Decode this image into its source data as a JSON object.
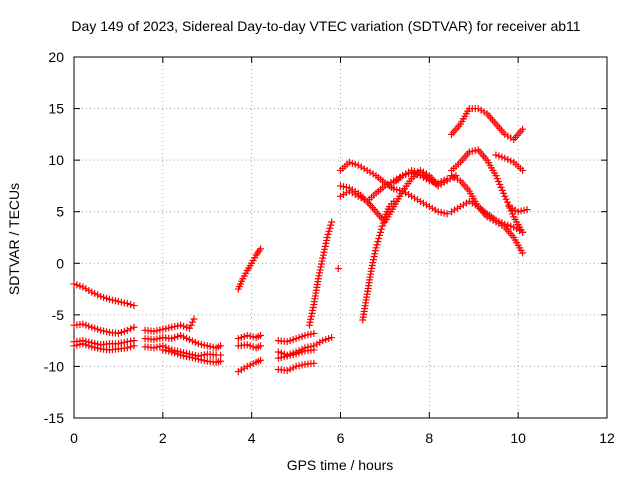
{
  "chart_data": {
    "type": "scatter",
    "title": "Day 149 of 2023, Sidereal Day-to-day VTEC variation (SDTVAR) for receiver ab11",
    "xlabel": "GPS time / hours",
    "ylabel": "SDTVAR / TECUs",
    "xlim": [
      0,
      12
    ],
    "ylim": [
      -15,
      20
    ],
    "xticks": [
      "0",
      "2",
      "4",
      "6",
      "8",
      "10",
      "12"
    ],
    "yticks": [
      "-15",
      "-10",
      "-5",
      "0",
      "5",
      "10",
      "15",
      "20"
    ],
    "grid": true,
    "marker": "plus",
    "color": "#ff0000",
    "series": [
      {
        "x": [
          0.0,
          0.2,
          0.4,
          0.6,
          0.8,
          1.0,
          1.2,
          1.35
        ],
        "y": [
          -2.0,
          -2.3,
          -2.8,
          -3.2,
          -3.5,
          -3.7,
          -3.9,
          -4.1
        ]
      },
      {
        "x": [
          0.0,
          0.2,
          0.4,
          0.6,
          0.8,
          1.0,
          1.2,
          1.35
        ],
        "y": [
          -6.0,
          -5.9,
          -6.2,
          -6.5,
          -6.7,
          -6.8,
          -6.5,
          -6.2
        ]
      },
      {
        "x": [
          0.0,
          0.2,
          0.4,
          0.6,
          0.8,
          1.0,
          1.2,
          1.35
        ],
        "y": [
          -7.6,
          -7.5,
          -7.7,
          -7.9,
          -7.8,
          -7.8,
          -7.6,
          -7.5
        ]
      },
      {
        "x": [
          0.0,
          0.2,
          0.4,
          0.6,
          0.8,
          1.0,
          1.2,
          1.35
        ],
        "y": [
          -8.0,
          -7.8,
          -8.1,
          -8.3,
          -8.4,
          -8.3,
          -8.2,
          -8.0
        ]
      },
      {
        "x": [
          1.6,
          1.8,
          2.0,
          2.2,
          2.4,
          2.6,
          2.7
        ],
        "y": [
          -6.5,
          -6.6,
          -6.4,
          -6.2,
          -6.0,
          -6.3,
          -5.4
        ]
      },
      {
        "x": [
          1.6,
          1.8,
          2.0,
          2.2,
          2.4,
          2.6,
          2.8,
          3.0,
          3.2,
          3.3
        ],
        "y": [
          -7.3,
          -7.4,
          -7.2,
          -7.3,
          -7.0,
          -7.4,
          -7.8,
          -8.0,
          -8.2,
          -8.0
        ]
      },
      {
        "x": [
          1.6,
          1.8,
          2.0,
          2.2,
          2.4,
          2.6,
          2.8,
          3.0,
          3.2,
          3.3
        ],
        "y": [
          -8.1,
          -8.2,
          -8.0,
          -8.4,
          -8.6,
          -8.8,
          -9.0,
          -8.8,
          -8.9,
          -8.9
        ]
      },
      {
        "x": [
          2.0,
          2.2,
          2.4,
          2.6,
          2.8,
          3.0,
          3.2,
          3.3
        ],
        "y": [
          -8.4,
          -8.6,
          -8.9,
          -9.1,
          -9.3,
          -9.5,
          -9.6,
          -9.5
        ]
      },
      {
        "x": [
          3.7,
          3.8,
          3.9,
          4.0,
          4.1,
          4.2
        ],
        "y": [
          -2.5,
          -1.5,
          -0.7,
          0.0,
          0.8,
          1.4
        ]
      },
      {
        "x": [
          3.7,
          3.9,
          4.1,
          4.2
        ],
        "y": [
          -7.3,
          -7.0,
          -7.2,
          -7.0
        ]
      },
      {
        "x": [
          3.7,
          3.9,
          4.1,
          4.2
        ],
        "y": [
          -8.0,
          -7.9,
          -8.2,
          -8.0
        ]
      },
      {
        "x": [
          3.7,
          3.9,
          4.1,
          4.2
        ],
        "y": [
          -10.5,
          -10.0,
          -9.6,
          -9.4
        ]
      },
      {
        "x": [
          4.6,
          4.8,
          5.0,
          5.2,
          5.4
        ],
        "y": [
          -7.5,
          -7.6,
          -7.3,
          -7.0,
          -6.8
        ]
      },
      {
        "x": [
          4.6,
          4.8,
          5.0,
          5.2,
          5.4,
          5.6,
          5.8
        ],
        "y": [
          -8.6,
          -8.9,
          -8.6,
          -8.2,
          -8.0,
          -7.5,
          -7.2
        ]
      },
      {
        "x": [
          4.6,
          4.8,
          5.0,
          5.2,
          5.4
        ],
        "y": [
          -9.2,
          -9.0,
          -8.8,
          -8.5,
          -8.4
        ]
      },
      {
        "x": [
          4.6,
          4.8,
          5.0,
          5.2,
          5.4
        ],
        "y": [
          -10.3,
          -10.4,
          -10.0,
          -9.8,
          -9.7
        ]
      },
      {
        "x": [
          5.3,
          5.4,
          5.5,
          5.6,
          5.7,
          5.8
        ],
        "y": [
          -6.0,
          -4.0,
          -1.5,
          0.5,
          2.5,
          4.0
        ]
      },
      {
        "x": [
          5.95
        ],
        "y": [
          -0.5
        ]
      },
      {
        "x": [
          6.0,
          6.2,
          6.4,
          6.6,
          6.8,
          7.0,
          7.2,
          7.4,
          7.6,
          7.8,
          8.0,
          8.2,
          8.4
        ],
        "y": [
          6.5,
          7.0,
          6.5,
          6.0,
          6.8,
          7.5,
          8.0,
          8.5,
          8.8,
          8.5,
          8.0,
          7.8,
          8.2
        ]
      },
      {
        "x": [
          6.0,
          6.2,
          6.4,
          6.6,
          6.8,
          7.0,
          7.2,
          7.4,
          7.6,
          7.8,
          8.0,
          8.2,
          8.4
        ],
        "y": [
          9.0,
          9.8,
          9.5,
          9.0,
          8.5,
          7.8,
          7.2,
          7.0,
          6.5,
          6.0,
          5.5,
          5.0,
          4.8
        ]
      },
      {
        "x": [
          6.0,
          6.2,
          6.4,
          6.6,
          6.8,
          7.0,
          7.2,
          7.4,
          7.6,
          7.8,
          8.0,
          8.2
        ],
        "y": [
          7.5,
          7.3,
          6.8,
          6.0,
          5.0,
          4.0,
          5.5,
          7.0,
          8.2,
          9.0,
          8.5,
          7.5
        ]
      },
      {
        "x": [
          6.5,
          6.6,
          6.7,
          6.8,
          6.9,
          7.0,
          7.1,
          7.2
        ],
        "y": [
          -5.5,
          -3.0,
          -0.5,
          1.5,
          3.0,
          4.5,
          5.5,
          6.0
        ]
      },
      {
        "x": [
          7.2,
          7.4,
          7.6,
          7.8,
          8.0,
          8.2,
          8.4,
          8.6
        ],
        "y": [
          7.8,
          8.5,
          9.0,
          8.8,
          8.2,
          7.5,
          8.0,
          8.5
        ]
      },
      {
        "x": [
          8.5,
          8.7,
          8.9,
          9.1,
          9.3,
          9.5,
          9.7,
          9.9,
          10.1
        ],
        "y": [
          12.5,
          13.5,
          15.0,
          15.0,
          14.5,
          13.5,
          12.5,
          12.0,
          13.0
        ]
      },
      {
        "x": [
          8.5,
          8.7,
          8.9,
          9.1,
          9.3,
          9.5,
          9.7,
          9.9,
          10.1
        ],
        "y": [
          9.0,
          9.8,
          10.8,
          11.0,
          10.0,
          8.5,
          6.5,
          4.5,
          3.0
        ]
      },
      {
        "x": [
          8.5,
          8.7,
          8.9,
          9.1,
          9.3,
          9.5,
          9.7,
          9.9,
          10.1
        ],
        "y": [
          5.0,
          5.5,
          6.0,
          5.5,
          4.8,
          4.2,
          3.8,
          3.5,
          3.0
        ]
      },
      {
        "x": [
          8.5,
          8.7,
          8.9,
          9.1,
          9.3,
          9.5,
          9.7,
          9.9,
          10.1
        ],
        "y": [
          8.5,
          8.0,
          7.0,
          5.5,
          4.5,
          4.0,
          3.5,
          2.5,
          1.0
        ]
      },
      {
        "x": [
          9.5,
          9.7,
          9.9,
          10.1
        ],
        "y": [
          10.5,
          10.2,
          9.8,
          9.0
        ]
      },
      {
        "x": [
          9.8,
          10.0,
          10.2
        ],
        "y": [
          5.5,
          5.0,
          5.2
        ]
      }
    ]
  }
}
